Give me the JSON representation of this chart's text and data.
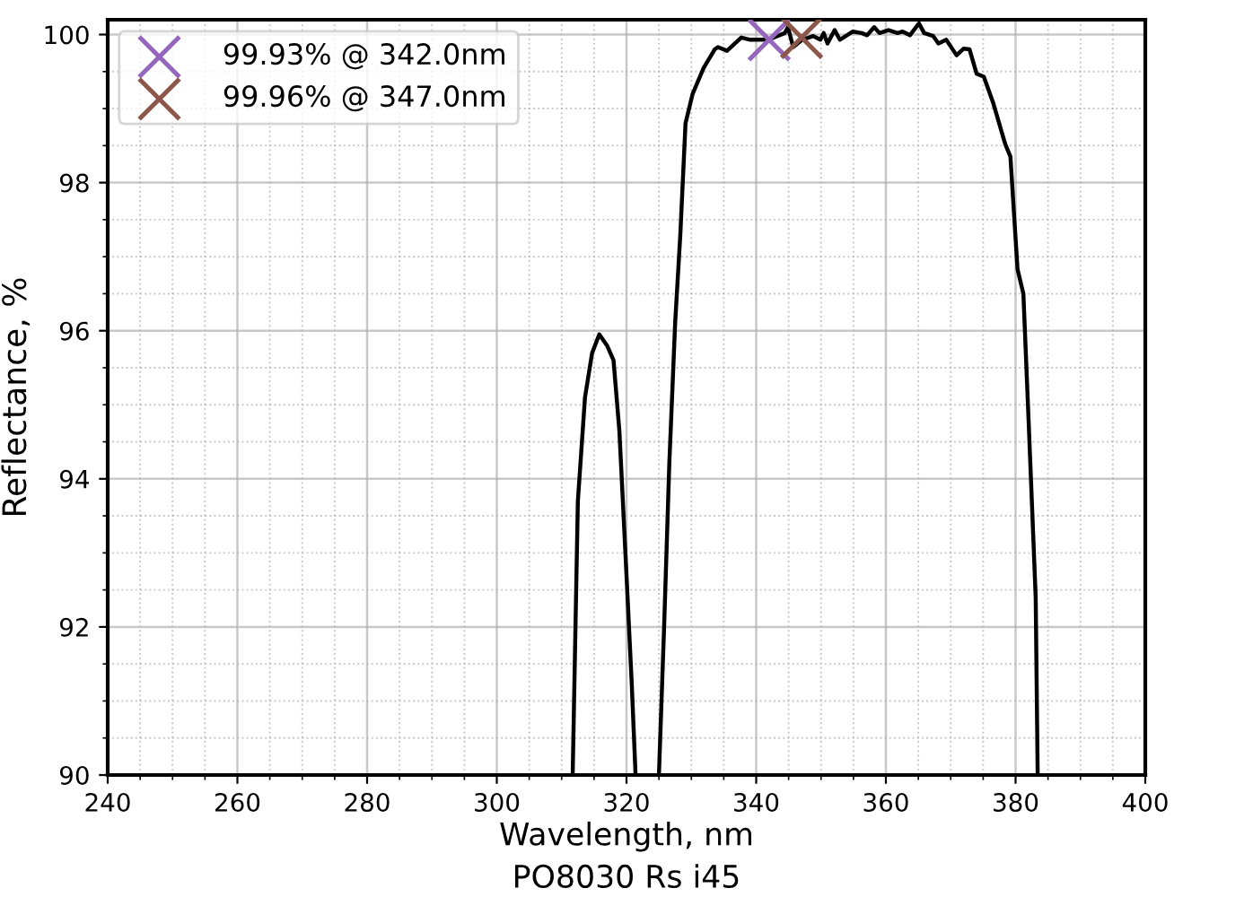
{
  "chart_data": {
    "type": "line",
    "title": "PO8030 Rs i45",
    "xlabel": "Wavelength, nm",
    "ylabel": "Reflectance, %",
    "xlim": [
      240,
      400
    ],
    "ylim": [
      90,
      100.2
    ],
    "xticks": [
      240,
      260,
      280,
      300,
      320,
      340,
      360,
      380,
      400
    ],
    "yticks": [
      90,
      92,
      94,
      96,
      98,
      100
    ],
    "grid": true,
    "legend": "top left",
    "series": [
      {
        "color": "#000000",
        "marker": "none",
        "line_style": "solid",
        "x": [
          311.7,
          312.5,
          313.6,
          314.7,
          315.8,
          317.0,
          318.0,
          318.9,
          320.0,
          320.8,
          321.4,
          322.5,
          325.0,
          325.8,
          326.6,
          327.5,
          328.3,
          329.1,
          330.2,
          331.9,
          333.6,
          334.1,
          335.5,
          337.7,
          339.1,
          340.2,
          341.9,
          344.4,
          344.9,
          345.7,
          347.1,
          348.8,
          349.9,
          350.4,
          351.0,
          352.1,
          352.9,
          354.9,
          356.3,
          357.1,
          358.2,
          359.0,
          360.4,
          361.8,
          362.6,
          363.7,
          365.1,
          365.9,
          367.3,
          368.1,
          369.3,
          370.9,
          372.0,
          372.9,
          374.0,
          375.1,
          376.5,
          378.4,
          379.2,
          380.3,
          381.2,
          382.0,
          383.1,
          383.4
        ],
        "values": [
          90.0,
          93.7,
          95.1,
          95.7,
          95.95,
          95.8,
          95.6,
          94.65,
          92.7,
          91.25,
          90.0,
          null,
          90.0,
          92.0,
          94.2,
          96.1,
          97.3,
          98.8,
          99.2,
          99.55,
          99.8,
          99.83,
          99.78,
          99.96,
          99.93,
          99.93,
          99.93,
          100.02,
          100.1,
          99.83,
          99.93,
          99.98,
          99.93,
          100.02,
          99.88,
          100.06,
          99.93,
          100.04,
          100.02,
          99.99,
          100.1,
          100.02,
          100.06,
          100.02,
          100.04,
          99.99,
          100.15,
          100.02,
          99.98,
          99.88,
          99.93,
          99.72,
          99.81,
          99.8,
          99.47,
          99.43,
          99.09,
          98.52,
          98.35,
          96.83,
          96.5,
          94.8,
          92.4,
          90.05
        ]
      },
      {
        "type": "scatter",
        "name": "99.93% @ 342.0nm",
        "color": "#9467bd",
        "marker": "cross",
        "x": [
          342.0
        ],
        "values": [
          99.93
        ]
      },
      {
        "type": "scatter",
        "name": "99.96% @ 347.0nm",
        "color": "#8c564b",
        "marker": "cross",
        "x": [
          347.0
        ],
        "values": [
          99.96
        ]
      }
    ]
  }
}
